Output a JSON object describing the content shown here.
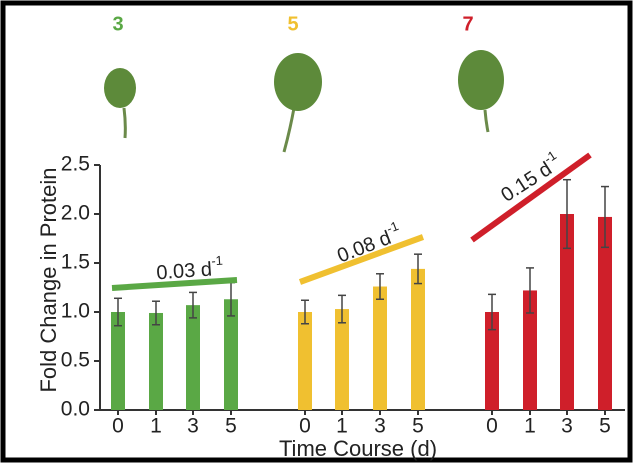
{
  "chart_data": {
    "type": "bar",
    "y_label": "Fold Change in Protein",
    "x_label": "Time Course (d)",
    "ylim": [
      0,
      2.5
    ],
    "yticks": [
      {
        "value": 0,
        "label": "0.0"
      },
      0.5,
      {
        "value": 1,
        "label": "1.0"
      },
      1.5,
      {
        "value": 2,
        "label": "2.0"
      },
      2.5
    ],
    "groups": [
      {
        "name": "3",
        "color": "#5aa845",
        "categories": [
          "0",
          "1",
          "3",
          "5"
        ],
        "values": [
          1.0,
          0.99,
          1.07,
          1.13
        ],
        "errors": [
          0.14,
          0.12,
          0.13,
          0.17
        ],
        "rate_label": "0.03 d",
        "rate_exponent": "-1"
      },
      {
        "name": "5",
        "color": "#f0c030",
        "categories": [
          "0",
          "1",
          "3",
          "5"
        ],
        "values": [
          1.0,
          1.03,
          1.26,
          1.44
        ],
        "errors": [
          0.12,
          0.14,
          0.13,
          0.15
        ],
        "rate_label": "0.08 d",
        "rate_exponent": "-1"
      },
      {
        "name": "7",
        "color": "#cf1f2a",
        "categories": [
          "0",
          "1",
          "3",
          "5"
        ],
        "values": [
          1.0,
          1.22,
          2.0,
          1.97
        ],
        "errors": [
          0.18,
          0.23,
          0.35,
          0.31
        ],
        "rate_label": "0.15 d",
        "rate_exponent": "-1"
      }
    ]
  }
}
